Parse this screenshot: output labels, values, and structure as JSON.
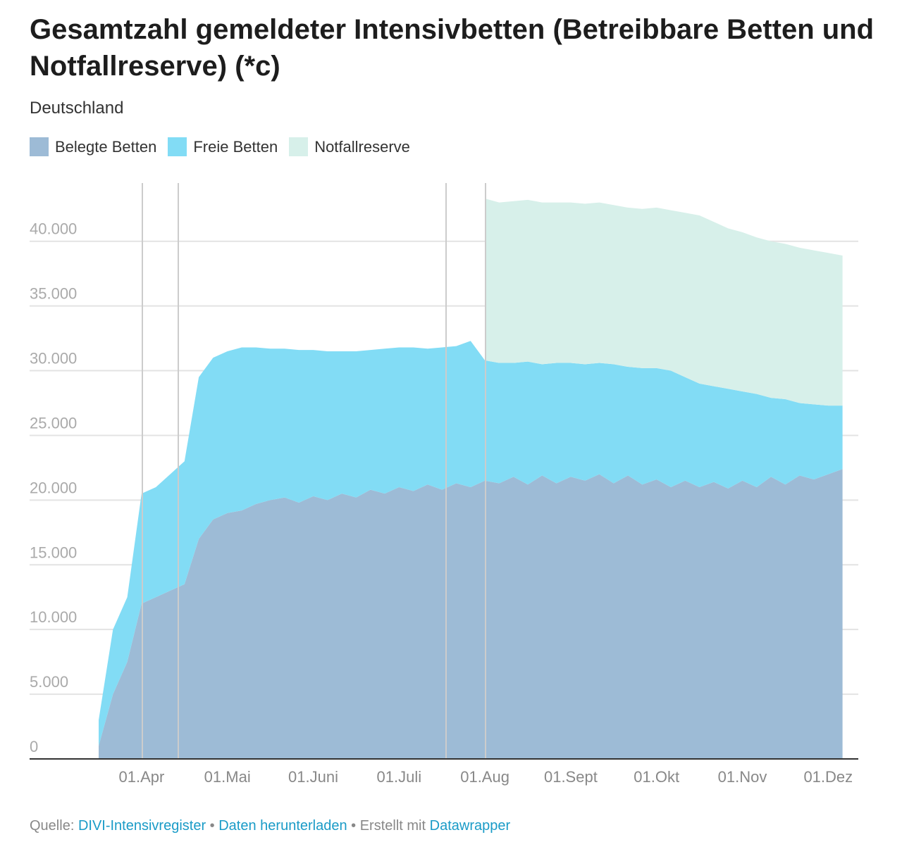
{
  "chart_data": {
    "type": "area",
    "title": "Gesamtzahl gemeldeter Intensivbetten (Betreibbare Betten und Notfallreserve) (*c)",
    "subtitle": "Deutschland",
    "stacked": true,
    "categories": [
      null,
      null,
      null,
      "01.Apr",
      null,
      null,
      null,
      null,
      null,
      "01.Mai",
      null,
      null,
      null,
      null,
      null,
      "01.Juni",
      null,
      null,
      null,
      null,
      null,
      "01.Juli",
      null,
      null,
      null,
      null,
      null,
      "01.Aug",
      null,
      null,
      null,
      null,
      null,
      "01.Sept",
      null,
      null,
      null,
      null,
      null,
      "01.Okt",
      null,
      null,
      null,
      null,
      null,
      "01.Nov",
      null,
      null,
      null,
      null,
      null,
      "01.Dez",
      null
    ],
    "series": [
      {
        "name": "Belegte Betten",
        "color": "#9dbbd6",
        "values": [
          1000,
          5000,
          7500,
          12000,
          12500,
          13000,
          13500,
          17000,
          18500,
          19000,
          19200,
          19700,
          20000,
          20200,
          19800,
          20300,
          20000,
          20500,
          20200,
          20800,
          20500,
          21000,
          20700,
          21200,
          20800,
          21300,
          21000,
          21500,
          21300,
          21800,
          21200,
          21900,
          21300,
          21800,
          21500,
          22000,
          21300,
          21900,
          21200,
          21600,
          21000,
          21500,
          21000,
          21400,
          20900,
          21500,
          21000,
          21800,
          21200,
          21900,
          21600,
          22000,
          22400
        ]
      },
      {
        "name": "Freie Betten",
        "color": "#82dcf5",
        "values": [
          2000,
          5000,
          5000,
          8500,
          8500,
          9000,
          9500,
          12500,
          12500,
          12500,
          12600,
          12100,
          11700,
          11500,
          11800,
          11300,
          11500,
          11000,
          11300,
          10800,
          11200,
          10800,
          11100,
          10500,
          11000,
          10600,
          11300,
          9300,
          9300,
          8800,
          9500,
          8600,
          9300,
          8800,
          9000,
          8600,
          9200,
          8400,
          9000,
          8600,
          9000,
          8000,
          8000,
          7400,
          7700,
          6900,
          7200,
          6100,
          6600,
          5600,
          5800,
          5300,
          4900
        ]
      },
      {
        "name": "Notfallreserve",
        "color": "#d7f0ea",
        "values": [
          null,
          null,
          null,
          null,
          null,
          null,
          null,
          null,
          null,
          null,
          null,
          null,
          null,
          null,
          null,
          null,
          null,
          null,
          null,
          null,
          null,
          null,
          null,
          null,
          null,
          null,
          null,
          12500,
          12400,
          12500,
          12500,
          12500,
          12400,
          12400,
          12400,
          12400,
          12300,
          12300,
          12300,
          12400,
          12400,
          12700,
          13000,
          12700,
          12400,
          12300,
          12100,
          12100,
          12000,
          12000,
          11900,
          11800,
          11600
        ]
      }
    ],
    "ylim": [
      0,
      44500
    ],
    "yticks": [
      0,
      {
        "value": 5000,
        "label": "5.000"
      },
      {
        "value": 10000,
        "label": "10.000"
      },
      {
        "value": 15000,
        "label": "15.000"
      },
      {
        "value": 20000,
        "label": "20.000"
      },
      {
        "value": 25000,
        "label": "25.000"
      },
      {
        "value": 30000,
        "label": "30.000"
      },
      {
        "value": 35000,
        "label": "35.000"
      },
      {
        "value": 40000,
        "label": "40.000"
      }
    ],
    "grid": true,
    "legend": "top"
  },
  "footer": {
    "source_label": "Quelle:",
    "source": "DIVI-Intensivregister",
    "download": "Daten herunterladen",
    "made_with": "Erstellt mit",
    "tool": "Datawrapper"
  }
}
